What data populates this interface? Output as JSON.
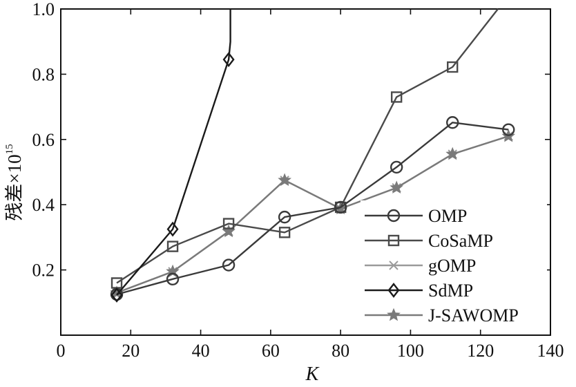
{
  "chart_data": {
    "type": "line",
    "title": "",
    "xlabel": "K",
    "ylabel": "残差×10",
    "ylabel_exponent": "15",
    "xlim": [
      0,
      140
    ],
    "ylim": [
      0,
      1.0
    ],
    "xticks": [
      0,
      20,
      40,
      60,
      80,
      100,
      120,
      140
    ],
    "yticks": [
      0.2,
      0.4,
      0.6,
      0.8,
      1.0
    ],
    "xtick_labels": [
      "0",
      "20",
      "40",
      "60",
      "80",
      "100",
      "120",
      "140"
    ],
    "ytick_labels": [
      "0.2",
      "0.4",
      "0.6",
      "0.8",
      "1.0"
    ],
    "grid": false,
    "legend_position": "bottom-right",
    "series": [
      {
        "name": "OMP",
        "marker": "circle",
        "color": "#3a3a3a",
        "x": [
          16,
          32,
          48,
          64,
          80,
          96,
          112,
          128
        ],
        "y": [
          0.125,
          0.172,
          0.215,
          0.362,
          0.392,
          0.515,
          0.652,
          0.63
        ]
      },
      {
        "name": "CoSaMP",
        "marker": "square",
        "color": "#4a4a4a",
        "x": [
          16,
          32,
          48,
          64,
          80,
          96,
          112,
          125
        ],
        "y": [
          0.16,
          0.272,
          0.342,
          0.315,
          0.392,
          0.73,
          0.822,
          1.0
        ]
      },
      {
        "name": "gOMP",
        "marker": "x",
        "color": "#9a9a9a",
        "x": [
          16,
          32,
          48,
          64,
          80,
          96,
          112,
          128
        ],
        "y": [
          0.13,
          0.195,
          0.318,
          0.475,
          0.388,
          0.452,
          0.555,
          0.61
        ]
      },
      {
        "name": "SdMP",
        "marker": "diamond",
        "color": "#1a1a1a",
        "x": [
          16,
          32,
          48,
          48.5,
          48.5
        ],
        "y": [
          0.123,
          0.325,
          0.845,
          0.9,
          1.0
        ]
      },
      {
        "name": "J-SAWOMP",
        "marker": "star",
        "color": "#7a7a7a",
        "x": [
          16,
          32,
          48,
          64,
          80,
          96,
          112,
          128
        ],
        "y": [
          0.13,
          0.195,
          0.318,
          0.475,
          0.388,
          0.452,
          0.555,
          0.61
        ]
      }
    ]
  }
}
